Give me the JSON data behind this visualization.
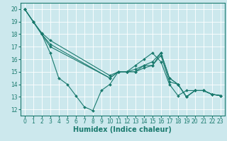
{
  "series": [
    {
      "x": [
        0,
        1,
        2,
        3,
        4,
        5,
        6,
        7,
        8,
        9,
        10,
        11,
        12,
        13,
        14,
        15,
        16,
        17,
        18,
        19,
        20,
        21,
        22,
        23
      ],
      "y": [
        20,
        19,
        18,
        16.5,
        14.5,
        14.0,
        13.1,
        12.2,
        11.9,
        13.5,
        14.0,
        15.0,
        15.0,
        15.5,
        16.0,
        16.5,
        15.8,
        14.0,
        13.1,
        13.5,
        13.5,
        13.5,
        13.2,
        13.1
      ]
    },
    {
      "x": [
        0,
        1,
        2,
        3,
        10,
        11,
        12,
        13,
        14,
        15,
        16,
        17,
        18,
        19,
        20,
        21,
        22,
        23
      ],
      "y": [
        20,
        19,
        18.1,
        17.5,
        14.7,
        15.0,
        15.0,
        15.2,
        15.5,
        15.5,
        16.3,
        14.2,
        14.0,
        13.0,
        13.5,
        13.5,
        13.2,
        13.1
      ]
    },
    {
      "x": [
        0,
        1,
        2,
        3,
        10,
        11,
        12,
        13,
        14,
        15,
        16,
        17,
        18,
        19,
        20,
        21,
        22,
        23
      ],
      "y": [
        20,
        19,
        18.0,
        17.2,
        14.5,
        15.0,
        15.0,
        15.0,
        15.3,
        15.5,
        16.5,
        14.5,
        14.0,
        13.0,
        13.5,
        13.5,
        13.2,
        13.1
      ]
    },
    {
      "x": [
        0,
        1,
        2,
        3,
        10,
        11,
        12,
        13,
        14,
        15,
        16,
        17,
        18,
        19,
        20,
        21,
        22,
        23
      ],
      "y": [
        20,
        19,
        18.0,
        17.0,
        14.5,
        15.0,
        15.0,
        15.0,
        15.5,
        15.8,
        16.5,
        14.5,
        14.0,
        13.0,
        13.5,
        13.5,
        13.2,
        13.1
      ]
    }
  ],
  "xlabel": "Humidex (Indice chaleur)",
  "xlim": [
    -0.5,
    23.5
  ],
  "ylim": [
    11.5,
    20.5
  ],
  "yticks": [
    12,
    13,
    14,
    15,
    16,
    17,
    18,
    19,
    20
  ],
  "xticks": [
    0,
    1,
    2,
    3,
    4,
    5,
    6,
    7,
    8,
    9,
    10,
    11,
    12,
    13,
    14,
    15,
    16,
    17,
    18,
    19,
    20,
    21,
    22,
    23
  ],
  "bg_color": "#cce8ed",
  "grid_color": "#ffffff",
  "line_color": "#1a7a6e",
  "tick_label_fontsize": 5.5,
  "xlabel_fontsize": 7.0,
  "marker": "D",
  "markersize": 2.0,
  "linewidth": 0.8
}
